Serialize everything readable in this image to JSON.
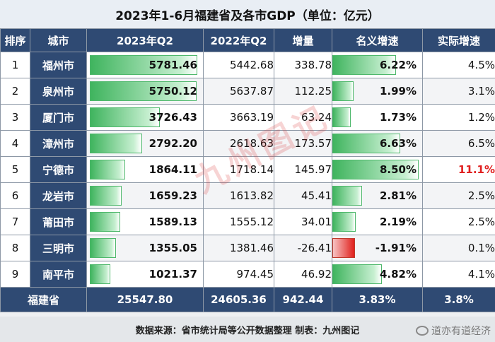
{
  "title": "2023年1-6月福建省及各市GDP（单位：亿元）",
  "headers": [
    "排序",
    "城市",
    "2023年Q2",
    "2022年Q2",
    "增量",
    "名义增速",
    "实际增速"
  ],
  "rows": [
    {
      "rank": "1",
      "city": "福州市",
      "q2_2023": "5781.46",
      "q2_2022": "5442.68",
      "inc": "338.78",
      "nominal": "6.22%",
      "real": "4.5%"
    },
    {
      "rank": "2",
      "city": "泉州市",
      "q2_2023": "5750.12",
      "q2_2022": "5637.87",
      "inc": "112.25",
      "nominal": "1.99%",
      "real": "3.1%"
    },
    {
      "rank": "3",
      "city": "厦门市",
      "q2_2023": "3726.43",
      "q2_2022": "3663.19",
      "inc": "63.24",
      "nominal": "1.73%",
      "real": "1.2%"
    },
    {
      "rank": "4",
      "city": "漳州市",
      "q2_2023": "2792.20",
      "q2_2022": "2618.63",
      "inc": "173.57",
      "nominal": "6.63%",
      "real": "6.5%"
    },
    {
      "rank": "5",
      "city": "宁德市",
      "q2_2023": "1864.11",
      "q2_2022": "1718.14",
      "inc": "145.97",
      "nominal": "8.50%",
      "real": "11.1%"
    },
    {
      "rank": "6",
      "city": "龙岩市",
      "q2_2023": "1659.23",
      "q2_2022": "1613.82",
      "inc": "45.41",
      "nominal": "2.81%",
      "real": "2.5%"
    },
    {
      "rank": "7",
      "city": "莆田市",
      "q2_2023": "1589.13",
      "q2_2022": "1555.12",
      "inc": "34.01",
      "nominal": "2.19%",
      "real": "2.5%"
    },
    {
      "rank": "8",
      "city": "三明市",
      "q2_2023": "1355.05",
      "q2_2022": "1381.46",
      "inc": "-26.41",
      "nominal": "-1.91%",
      "real": "0.1%"
    },
    {
      "rank": "9",
      "city": "南平市",
      "q2_2023": "1021.37",
      "q2_2022": "974.45",
      "inc": "46.92",
      "nominal": "4.82%",
      "real": "4.1%"
    }
  ],
  "total": {
    "label": "福建省",
    "q2_2023": "25547.80",
    "q2_2022": "24605.36",
    "inc": "942.44",
    "nominal": "3.83%",
    "real": "3.8%"
  },
  "source": "数据来源：省市统计局等公开数据整理    制表：九州图记",
  "watermark": "九州图记",
  "corner_text": "道亦有道经济",
  "colors": {
    "header": "#2f4a73",
    "bar_positive": "#3fb45e",
    "bar_negative": "#e0201c",
    "highlight": "#e02020"
  },
  "chart_data": {
    "type": "table",
    "title": "2023年1-6月福建省及各市GDP（单位：亿元）",
    "columns": [
      "排序",
      "城市",
      "2023年Q2",
      "2022年Q2",
      "增量",
      "名义增速",
      "实际增速"
    ],
    "categories": [
      "福州市",
      "泉州市",
      "厦门市",
      "漳州市",
      "宁德市",
      "龙岩市",
      "莆田市",
      "三明市",
      "南平市"
    ],
    "series": [
      {
        "name": "2023年Q2",
        "values": [
          5781.46,
          5750.12,
          3726.43,
          2792.2,
          1864.11,
          1659.23,
          1589.13,
          1355.05,
          1021.37
        ]
      },
      {
        "name": "2022年Q2",
        "values": [
          5442.68,
          5637.87,
          3663.19,
          2618.63,
          1718.14,
          1613.82,
          1555.12,
          1381.46,
          974.45
        ]
      },
      {
        "name": "增量",
        "values": [
          338.78,
          112.25,
          63.24,
          173.57,
          145.97,
          45.41,
          34.01,
          -26.41,
          46.92
        ]
      },
      {
        "name": "名义增速",
        "values": [
          6.22,
          1.99,
          1.73,
          6.63,
          8.5,
          2.81,
          2.19,
          -1.91,
          4.82
        ]
      },
      {
        "name": "实际增速",
        "values": [
          4.5,
          3.1,
          1.2,
          6.5,
          11.1,
          2.5,
          2.5,
          0.1,
          4.1
        ]
      }
    ],
    "total": {
      "label": "福建省",
      "values": [
        25547.8,
        24605.36,
        942.44,
        3.83,
        3.8
      ]
    }
  }
}
